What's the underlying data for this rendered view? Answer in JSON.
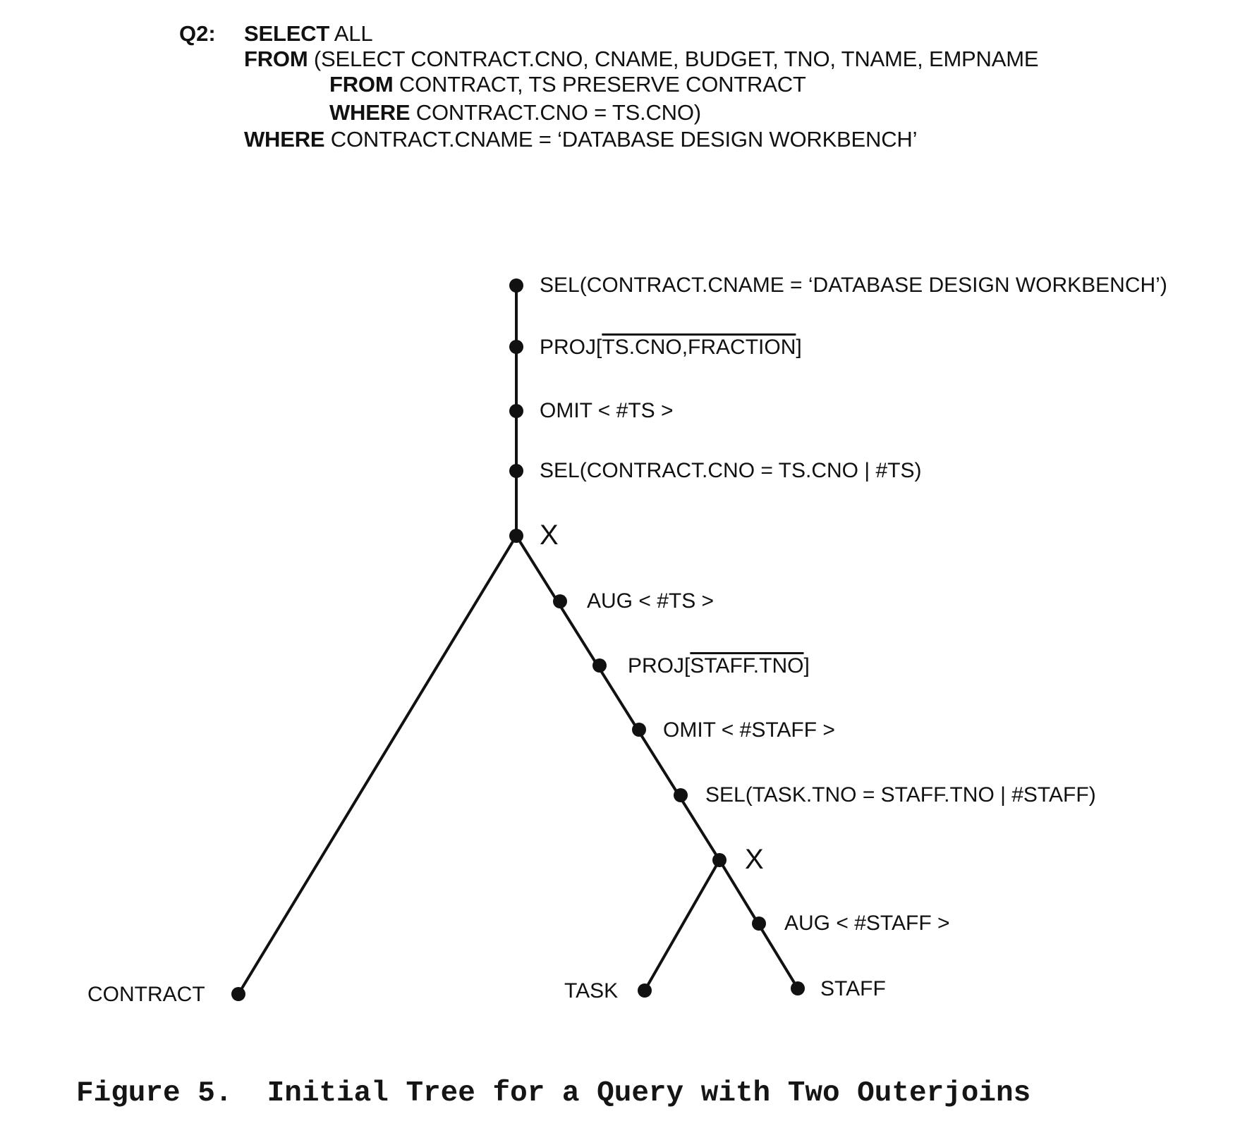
{
  "query": {
    "label": "Q2:",
    "lines": [
      {
        "kw": "SELECT",
        "rest": " ALL"
      },
      {
        "kw": "FROM",
        "rest": " (SELECT CONTRACT.CNO, CNAME, BUDGET, TNO, TNAME, EMPNAME"
      },
      {
        "kw": "FROM",
        "rest": " CONTRACT, TS PRESERVE CONTRACT"
      },
      {
        "kw": "WHERE",
        "rest": " CONTRACT.CNO = TS.CNO)"
      },
      {
        "kw": "WHERE",
        "rest": " CONTRACT.CNAME = ‘DATABASE DESIGN WORKBENCH’"
      }
    ]
  },
  "tree": {
    "nodes": [
      {
        "id": "n1",
        "label": "SEL(CONTRACT.CNAME = ‘DATABASE DESIGN WORKBENCH’)"
      },
      {
        "id": "n2",
        "label_prefix": "PROJ[",
        "label_overlined": "TS.CNO,FRACTION",
        "label_suffix": "]"
      },
      {
        "id": "n3",
        "label": "OMIT < #TS >"
      },
      {
        "id": "n4",
        "label": "SEL(CONTRACT.CNO = TS.CNO | #TS)"
      },
      {
        "id": "x1",
        "label": "X"
      },
      {
        "id": "n5",
        "label": "AUG < #TS >"
      },
      {
        "id": "n6",
        "label_prefix": "PROJ[",
        "label_overlined": "STAFF.TNO",
        "label_suffix": "]"
      },
      {
        "id": "n7",
        "label": "OMIT < #STAFF >"
      },
      {
        "id": "n8",
        "label": "SEL(TASK.TNO = STAFF.TNO | #STAFF)"
      },
      {
        "id": "x2",
        "label": "X"
      },
      {
        "id": "n9",
        "label": "AUG < #STAFF >"
      },
      {
        "id": "leaf-contract",
        "label": "CONTRACT"
      },
      {
        "id": "leaf-task",
        "label": "TASK"
      },
      {
        "id": "leaf-staff",
        "label": "STAFF"
      }
    ]
  },
  "caption": "Figure 5.  Initial Tree for a Query with Two Outerjoins"
}
